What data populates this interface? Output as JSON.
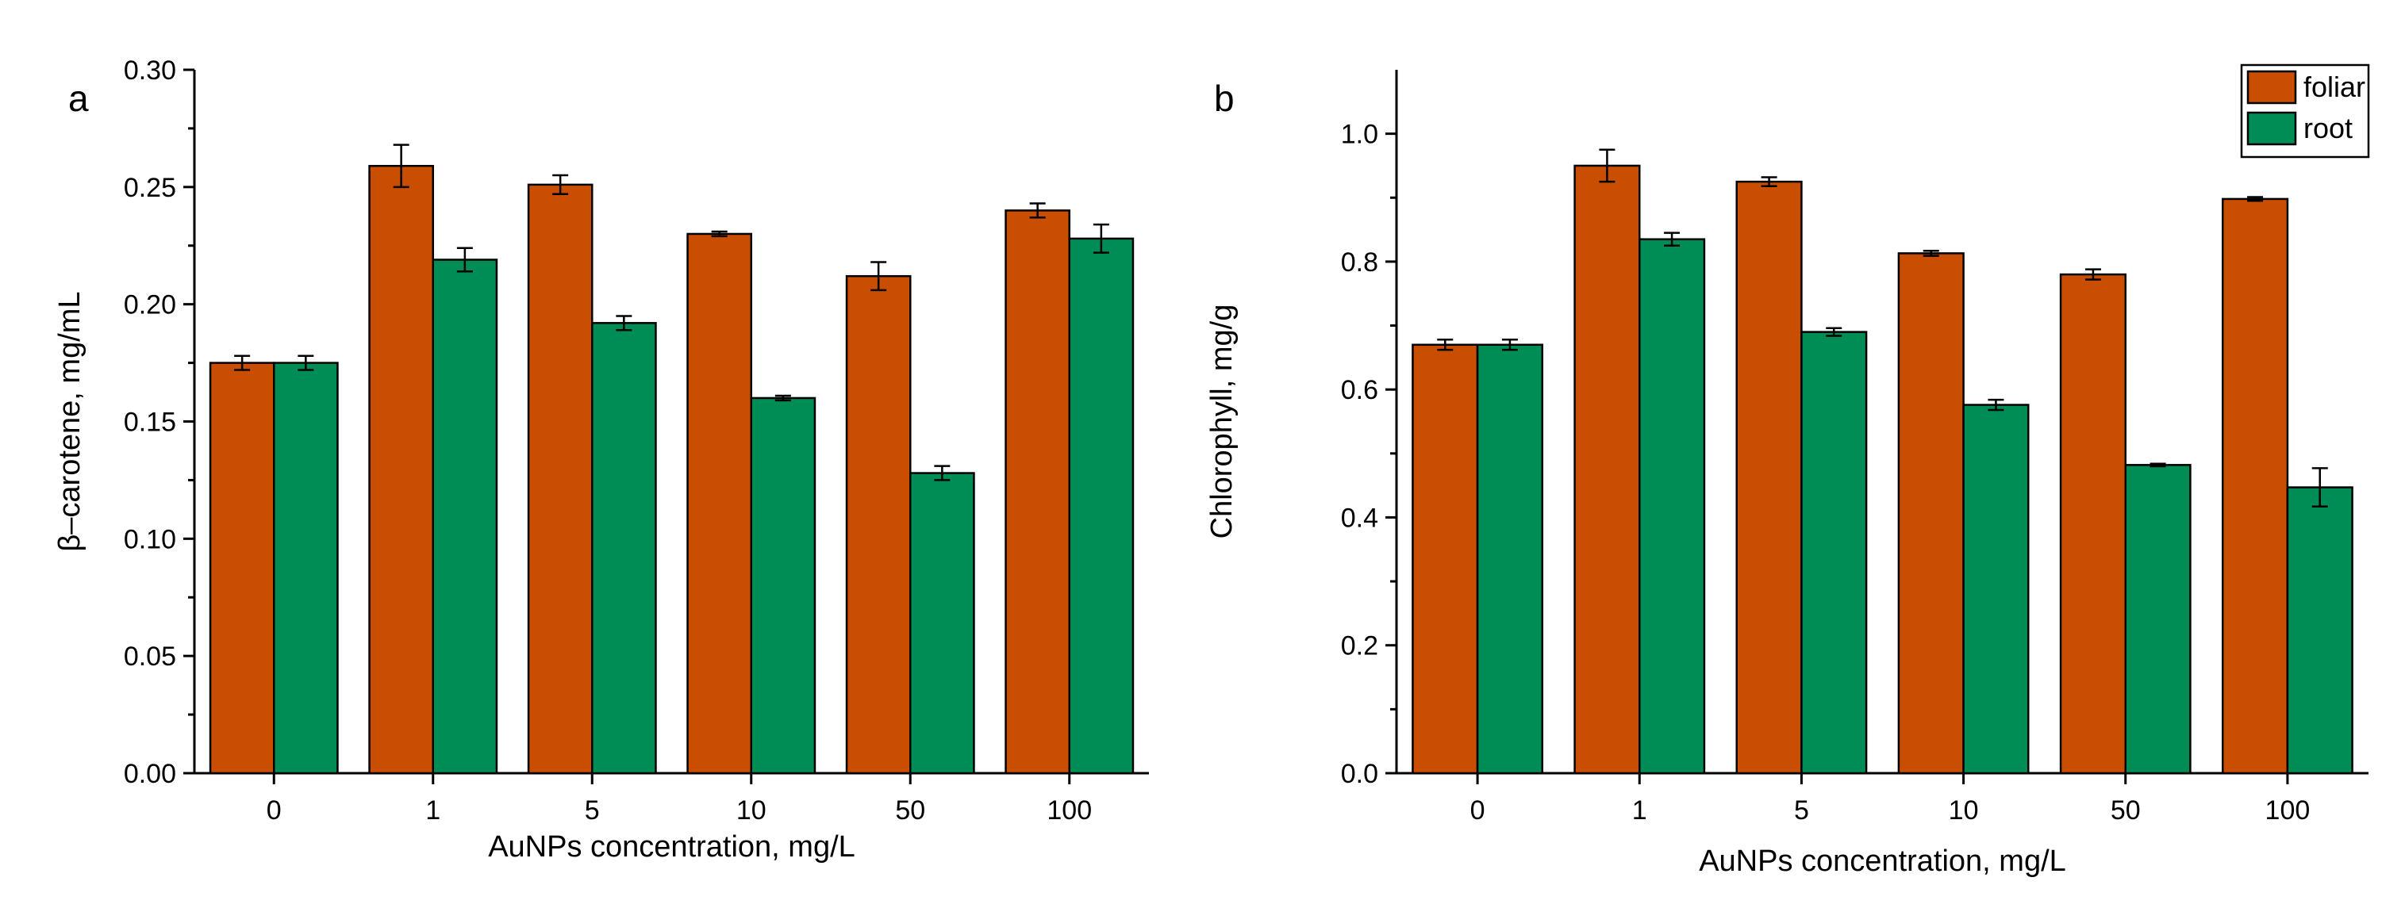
{
  "colors": {
    "foliar": "#C94E02",
    "root": "#008C55"
  },
  "chart_data": [
    {
      "type": "bar",
      "panel_label": "a",
      "title": "",
      "xlabel": "AuNPs concentration, mg/L",
      "ylabel": "β–carotene, mg/mL",
      "categories": [
        "0",
        "1",
        "5",
        "10",
        "50",
        "100"
      ],
      "ylim": [
        0,
        0.3
      ],
      "yticks": [
        "0.00",
        "0.05",
        "0.10",
        "0.15",
        "0.20",
        "0.25",
        "0.30"
      ],
      "series": [
        {
          "name": "foliar",
          "values": [
            0.175,
            0.259,
            0.251,
            0.23,
            0.212,
            0.24
          ],
          "errors": [
            0.003,
            0.009,
            0.004,
            0.001,
            0.006,
            0.003
          ]
        },
        {
          "name": "root",
          "values": [
            0.175,
            0.219,
            0.192,
            0.16,
            0.128,
            0.228
          ],
          "errors": [
            0.003,
            0.005,
            0.003,
            0.001,
            0.003,
            0.006
          ]
        }
      ],
      "legend": null
    },
    {
      "type": "bar",
      "panel_label": "b",
      "title": "",
      "xlabel": "AuNPs concentration, mg/L",
      "ylabel": "Chlorophyll, mg/g",
      "categories": [
        "0",
        "1",
        "5",
        "10",
        "50",
        "100"
      ],
      "ylim": [
        0,
        1.1
      ],
      "yticks": [
        "0.0",
        "0.2",
        "0.4",
        "0.6",
        "0.8",
        "1.0"
      ],
      "series": [
        {
          "name": "foliar",
          "values": [
            0.67,
            0.95,
            0.925,
            0.813,
            0.78,
            0.898
          ],
          "errors": [
            0.008,
            0.025,
            0.007,
            0.004,
            0.008,
            0.003
          ]
        },
        {
          "name": "root",
          "values": [
            0.67,
            0.835,
            0.69,
            0.576,
            0.482,
            0.447
          ],
          "errors": [
            0.008,
            0.01,
            0.006,
            0.008,
            0.002,
            0.03
          ]
        }
      ],
      "legend": {
        "position": "top-right",
        "entries": [
          "foliar",
          "root"
        ]
      }
    }
  ]
}
